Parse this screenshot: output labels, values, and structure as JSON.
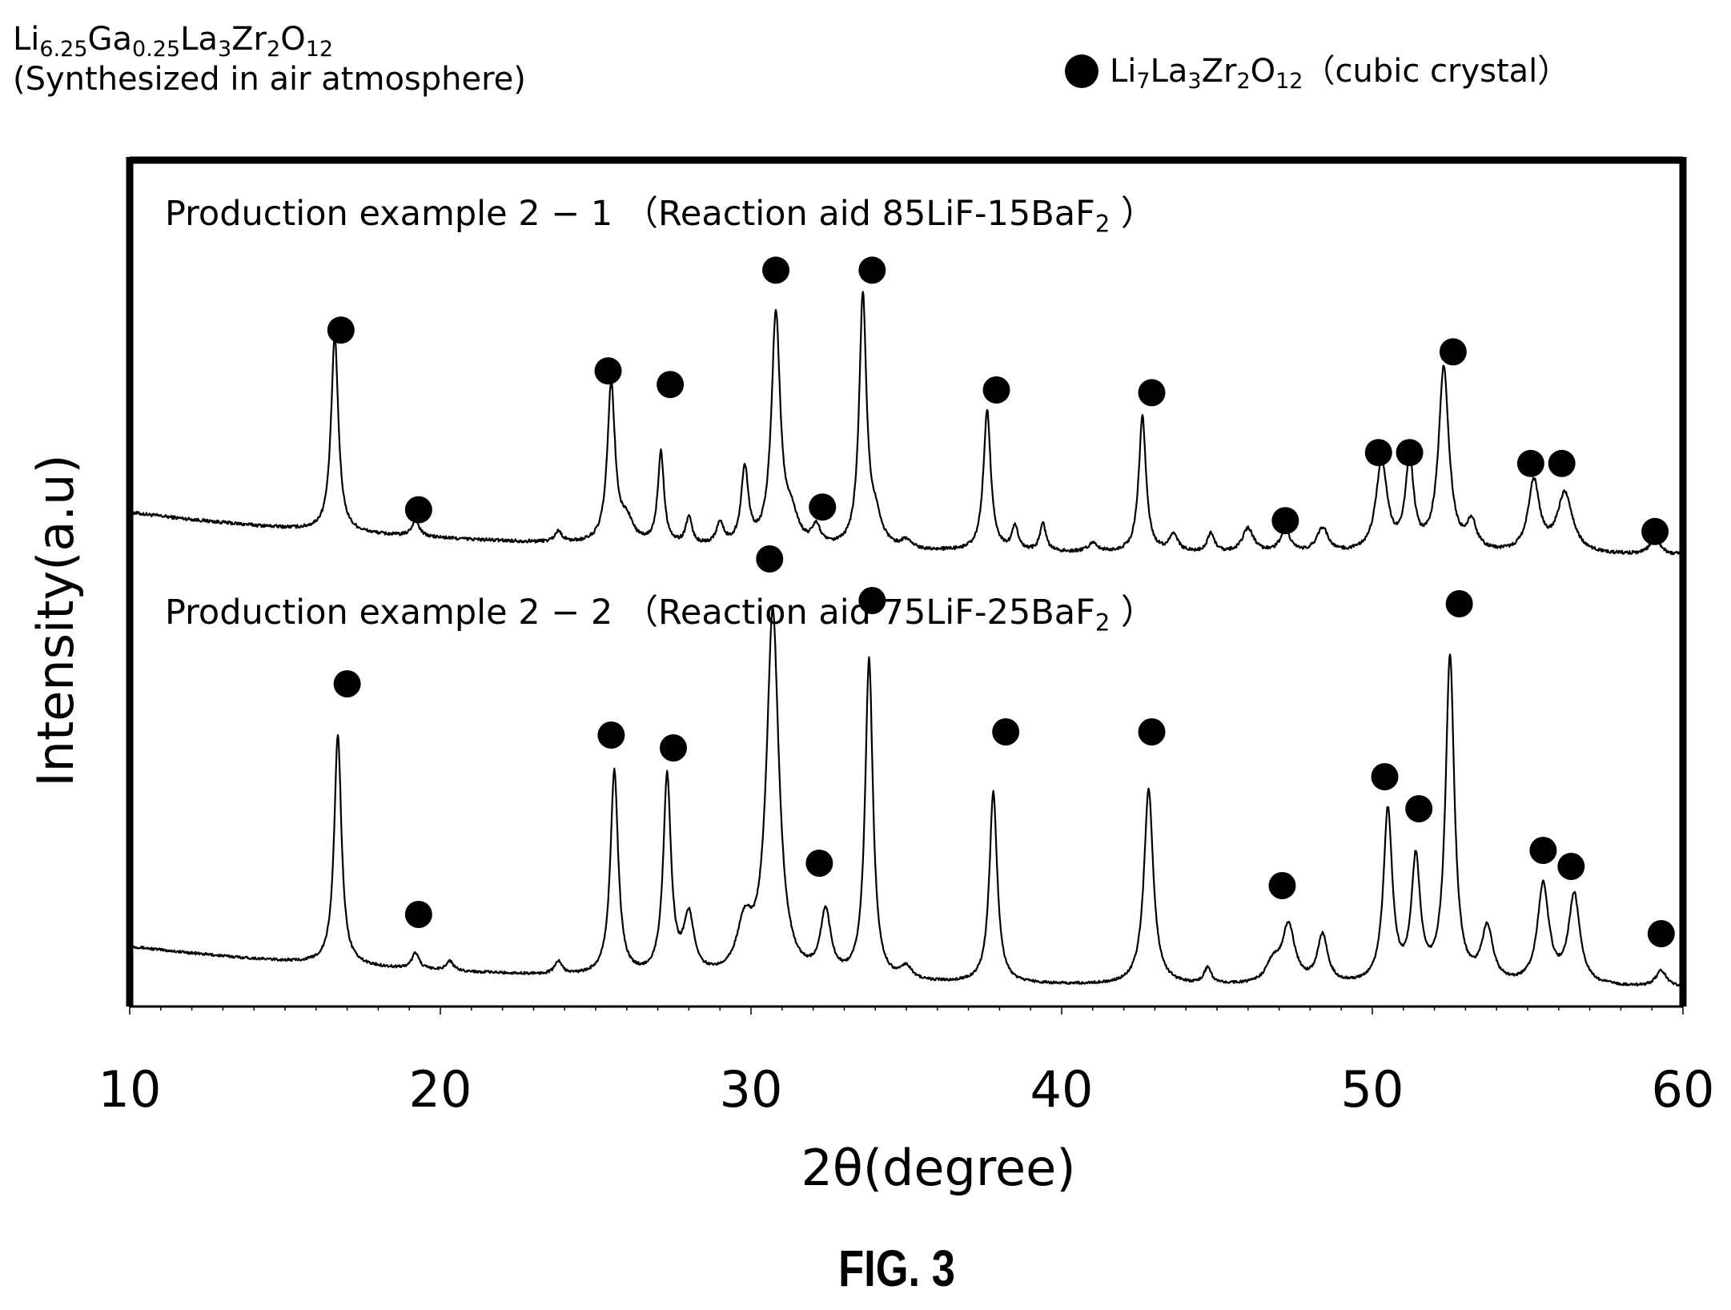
{
  "figure": {
    "formula_parts": [
      {
        "t": "Li"
      },
      {
        "s": "6.25"
      },
      {
        "t": "Ga"
      },
      {
        "s": "0.25"
      },
      {
        "t": "La"
      },
      {
        "s": "3"
      },
      {
        "t": "Zr"
      },
      {
        "s": "2"
      },
      {
        "t": "O"
      },
      {
        "s": "12"
      }
    ],
    "synthesis_note": "(Synthesized in air atmosphere)",
    "caption": "FIG. 3"
  },
  "legend": {
    "marker": "filled-circle",
    "parts": [
      {
        "t": "Li"
      },
      {
        "s": "7"
      },
      {
        "t": "La"
      },
      {
        "s": "3"
      },
      {
        "t": "Zr"
      },
      {
        "s": "2"
      },
      {
        "t": "O"
      },
      {
        "s": "12"
      },
      {
        "t": "（cubic crystal）"
      }
    ]
  },
  "chart_data": {
    "type": "line",
    "xlabel": "2θ(degree)",
    "ylabel": "Intensity(a.u)",
    "xlim": [
      10,
      60
    ],
    "xticks": [
      10,
      20,
      30,
      40,
      50,
      60
    ],
    "grid": false,
    "y_axis_ticks": false,
    "line_color": "#000000",
    "marker_color": "#000000",
    "series": [
      {
        "key": "s1",
        "label_parts": [
          {
            "t": "Production example  2 − 1 （Reaction aid 85LiF-15BaF"
          },
          {
            "s": "2"
          },
          {
            "t": " ）"
          }
        ],
        "baseline_start": 0.2,
        "baseline_end": 0.04,
        "noise": 0.006,
        "peaks": [
          {
            "x": 16.6,
            "h": 0.72,
            "w": 0.14
          },
          {
            "x": 19.2,
            "h": 0.06,
            "w": 0.14
          },
          {
            "x": 23.8,
            "h": 0.04,
            "w": 0.14
          },
          {
            "x": 25.5,
            "h": 0.58,
            "w": 0.15
          },
          {
            "x": 26.0,
            "h": 0.08,
            "w": 0.25
          },
          {
            "x": 27.1,
            "h": 0.34,
            "w": 0.12
          },
          {
            "x": 28.0,
            "h": 0.1,
            "w": 0.12
          },
          {
            "x": 29.0,
            "h": 0.08,
            "w": 0.14
          },
          {
            "x": 29.8,
            "h": 0.28,
            "w": 0.14
          },
          {
            "x": 30.8,
            "h": 0.85,
            "w": 0.17
          },
          {
            "x": 31.3,
            "h": 0.1,
            "w": 0.25
          },
          {
            "x": 32.1,
            "h": 0.07,
            "w": 0.16
          },
          {
            "x": 33.6,
            "h": 0.92,
            "w": 0.14
          },
          {
            "x": 34.0,
            "h": 0.1,
            "w": 0.25
          },
          {
            "x": 35.0,
            "h": 0.03,
            "w": 0.2
          },
          {
            "x": 37.6,
            "h": 0.52,
            "w": 0.14
          },
          {
            "x": 38.5,
            "h": 0.09,
            "w": 0.12
          },
          {
            "x": 39.4,
            "h": 0.1,
            "w": 0.12
          },
          {
            "x": 41.0,
            "h": 0.03,
            "w": 0.2
          },
          {
            "x": 42.6,
            "h": 0.5,
            "w": 0.14
          },
          {
            "x": 43.6,
            "h": 0.06,
            "w": 0.18
          },
          {
            "x": 44.8,
            "h": 0.07,
            "w": 0.14
          },
          {
            "x": 46.0,
            "h": 0.09,
            "w": 0.22
          },
          {
            "x": 47.2,
            "h": 0.08,
            "w": 0.2
          },
          {
            "x": 48.4,
            "h": 0.09,
            "w": 0.22
          },
          {
            "x": 50.3,
            "h": 0.33,
            "w": 0.22
          },
          {
            "x": 51.2,
            "h": 0.33,
            "w": 0.16
          },
          {
            "x": 52.3,
            "h": 0.68,
            "w": 0.2
          },
          {
            "x": 53.2,
            "h": 0.1,
            "w": 0.2
          },
          {
            "x": 55.2,
            "h": 0.26,
            "w": 0.22
          },
          {
            "x": 56.2,
            "h": 0.22,
            "w": 0.3
          },
          {
            "x": 59.1,
            "h": 0.06,
            "w": 0.2
          }
        ],
        "markers": [
          {
            "x": 16.8,
            "h": 0.87
          },
          {
            "x": 19.3,
            "h": 0.21
          },
          {
            "x": 25.4,
            "h": 0.72
          },
          {
            "x": 27.4,
            "h": 0.67
          },
          {
            "x": 30.8,
            "h": 1.09
          },
          {
            "x": 32.3,
            "h": 0.22
          },
          {
            "x": 33.9,
            "h": 1.09
          },
          {
            "x": 37.9,
            "h": 0.65
          },
          {
            "x": 42.9,
            "h": 0.64
          },
          {
            "x": 47.2,
            "h": 0.17
          },
          {
            "x": 50.2,
            "h": 0.42
          },
          {
            "x": 51.2,
            "h": 0.42
          },
          {
            "x": 52.6,
            "h": 0.79
          },
          {
            "x": 55.1,
            "h": 0.38
          },
          {
            "x": 56.1,
            "h": 0.38
          },
          {
            "x": 59.1,
            "h": 0.13
          }
        ]
      },
      {
        "key": "s2",
        "label_parts": [
          {
            "t": "Production example  2 − 2 （Reaction aid 75LiF-25BaF"
          },
          {
            "s": "2"
          },
          {
            "t": " ）"
          }
        ],
        "baseline_start": 0.15,
        "baseline_end": 0.02,
        "noise": 0.004,
        "peaks": [
          {
            "x": 16.7,
            "h": 0.72,
            "w": 0.14
          },
          {
            "x": 19.2,
            "h": 0.05,
            "w": 0.14
          },
          {
            "x": 20.3,
            "h": 0.03,
            "w": 0.14
          },
          {
            "x": 23.8,
            "h": 0.04,
            "w": 0.14
          },
          {
            "x": 25.6,
            "h": 0.64,
            "w": 0.15
          },
          {
            "x": 27.3,
            "h": 0.62,
            "w": 0.15
          },
          {
            "x": 28.0,
            "h": 0.18,
            "w": 0.2
          },
          {
            "x": 30.7,
            "h": 1.14,
            "w": 0.24
          },
          {
            "x": 29.8,
            "h": 0.15,
            "w": 0.3
          },
          {
            "x": 32.4,
            "h": 0.2,
            "w": 0.2
          },
          {
            "x": 33.8,
            "h": 1.0,
            "w": 0.15
          },
          {
            "x": 35.0,
            "h": 0.04,
            "w": 0.2
          },
          {
            "x": 37.8,
            "h": 0.6,
            "w": 0.15
          },
          {
            "x": 42.8,
            "h": 0.61,
            "w": 0.18
          },
          {
            "x": 44.7,
            "h": 0.05,
            "w": 0.14
          },
          {
            "x": 47.3,
            "h": 0.18,
            "w": 0.25
          },
          {
            "x": 46.8,
            "h": 0.06,
            "w": 0.25
          },
          {
            "x": 48.4,
            "h": 0.15,
            "w": 0.2
          },
          {
            "x": 50.5,
            "h": 0.54,
            "w": 0.17
          },
          {
            "x": 51.4,
            "h": 0.38,
            "w": 0.17
          },
          {
            "x": 52.5,
            "h": 1.02,
            "w": 0.17
          },
          {
            "x": 53.7,
            "h": 0.17,
            "w": 0.22
          },
          {
            "x": 55.5,
            "h": 0.31,
            "w": 0.22
          },
          {
            "x": 56.5,
            "h": 0.28,
            "w": 0.22
          },
          {
            "x": 59.3,
            "h": 0.05,
            "w": 0.2
          }
        ],
        "markers": [
          {
            "x": 17.0,
            "h": 0.97
          },
          {
            "x": 19.3,
            "h": 0.25
          },
          {
            "x": 25.5,
            "h": 0.81
          },
          {
            "x": 27.5,
            "h": 0.77
          },
          {
            "x": 30.6,
            "h": 1.36
          },
          {
            "x": 32.2,
            "h": 0.41
          },
          {
            "x": 33.9,
            "h": 1.23
          },
          {
            "x": 38.2,
            "h": 0.82
          },
          {
            "x": 42.9,
            "h": 0.82
          },
          {
            "x": 47.1,
            "h": 0.34
          },
          {
            "x": 50.4,
            "h": 0.68
          },
          {
            "x": 51.5,
            "h": 0.58
          },
          {
            "x": 52.8,
            "h": 1.22
          },
          {
            "x": 55.5,
            "h": 0.45
          },
          {
            "x": 56.4,
            "h": 0.4
          },
          {
            "x": 59.3,
            "h": 0.19
          }
        ]
      }
    ]
  }
}
